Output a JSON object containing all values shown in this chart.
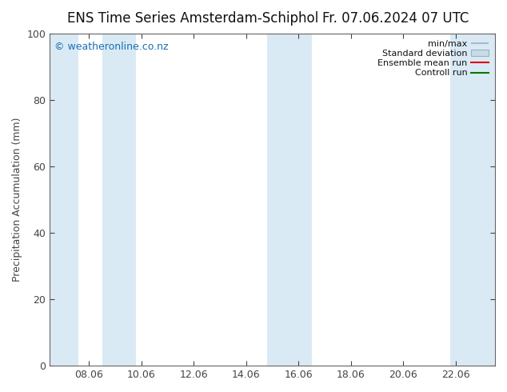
{
  "title_left": "ENS Time Series Amsterdam-Schiphol",
  "title_right": "Fr. 07.06.2024 07 UTC",
  "ylabel": "Precipitation Accumulation (mm)",
  "ylim": [
    0,
    100
  ],
  "yticks": [
    0,
    20,
    40,
    60,
    80,
    100
  ],
  "xtick_labels": [
    "08.06",
    "10.06",
    "12.06",
    "14.06",
    "16.06",
    "18.06",
    "20.06",
    "22.06"
  ],
  "xtick_positions": [
    1,
    3,
    5,
    7,
    9,
    11,
    13,
    15
  ],
  "xlim": [
    -0.5,
    16.5
  ],
  "watermark": "© weatheronline.co.nz",
  "watermark_color": "#1a6eb5",
  "bg_color": "#ffffff",
  "plot_bg_color": "#ffffff",
  "shaded_bands": [
    {
      "x_start": -0.5,
      "x_end": 0.6,
      "color": "#daeaf5"
    },
    {
      "x_start": 1.5,
      "x_end": 2.8,
      "color": "#daeaf5"
    },
    {
      "x_start": 7.8,
      "x_end": 9.5,
      "color": "#daeaf5"
    },
    {
      "x_start": 14.8,
      "x_end": 16.5,
      "color": "#daeaf5"
    }
  ],
  "legend_items": [
    {
      "label": "min/max",
      "color": "#aabbcc",
      "type": "line_with_caps"
    },
    {
      "label": "Standard deviation",
      "color": "#c8dce8",
      "type": "box"
    },
    {
      "label": "Ensemble mean run",
      "color": "#dd0000",
      "type": "line"
    },
    {
      "label": "Controll run",
      "color": "#007700",
      "type": "line"
    }
  ],
  "grid_color": "#cccccc",
  "tick_color": "#444444",
  "title_fontsize": 12,
  "label_fontsize": 9,
  "tick_fontsize": 9
}
